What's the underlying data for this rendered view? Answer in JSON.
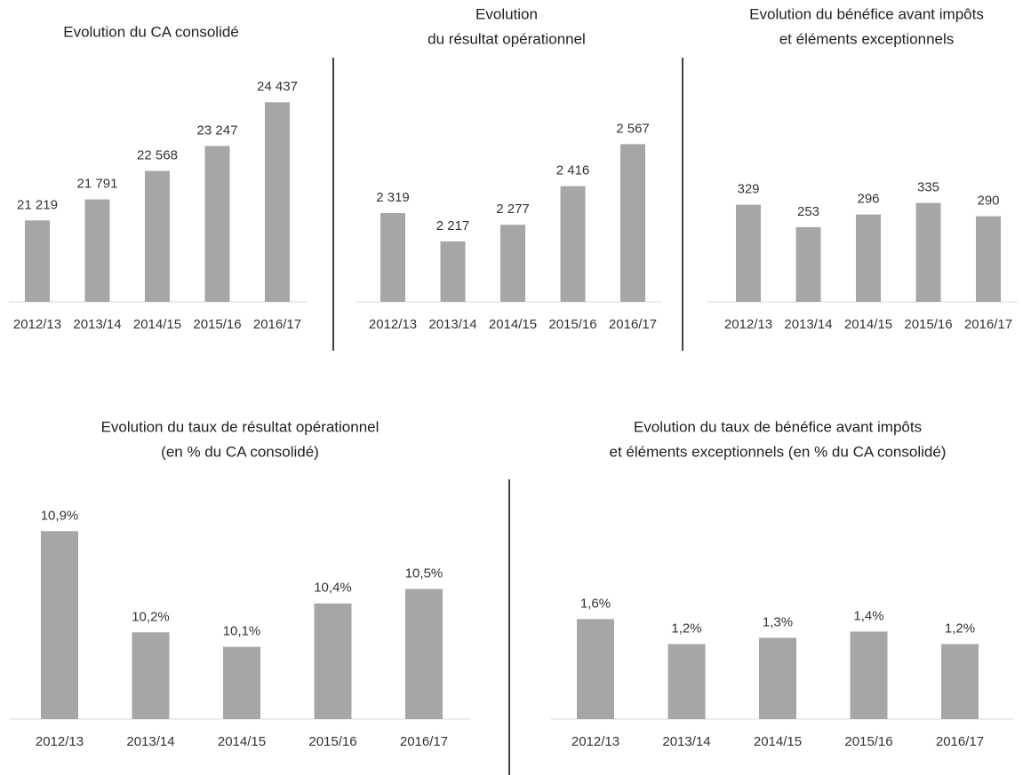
{
  "chart_data": [
    {
      "type": "bar",
      "title": [
        "Evolution du CA consolidé"
      ],
      "categories": [
        "2012/13",
        "2013/14",
        "2014/15",
        "2015/16",
        "2016/17"
      ],
      "values": [
        21219,
        21791,
        22568,
        23247,
        24437
      ],
      "value_labels": [
        "21 219",
        "21 791",
        "22 568",
        "23 247",
        "24 437"
      ],
      "color": "#a6a6a8",
      "ylim": [
        19000,
        25000
      ]
    },
    {
      "type": "bar",
      "title": [
        "Evolution",
        "du résultat opérationnel"
      ],
      "categories": [
        "2012/13",
        "2013/14",
        "2014/15",
        "2015/16",
        "2016/17"
      ],
      "values": [
        2319,
        2217,
        2277,
        2416,
        2567
      ],
      "value_labels": [
        "2 319",
        "2 217",
        "2 277",
        "2 416",
        "2 567"
      ],
      "color": "#a6a6a8",
      "ylim": [
        2000,
        2600
      ]
    },
    {
      "type": "bar",
      "title": [
        "Evolution du bénéfice avant impôts",
        "et éléments exceptionnels"
      ],
      "categories": [
        "2012/13",
        "2013/14",
        "2014/15",
        "2015/16",
        "2016/17"
      ],
      "values": [
        329,
        253,
        296,
        335,
        290
      ],
      "color": "#a6a6a8",
      "ylim": [
        0,
        400
      ]
    },
    {
      "type": "bar",
      "title": [
        "Evolution du taux de résultat opérationnel",
        "(en % du CA consolidé)"
      ],
      "categories": [
        "2012/13",
        "2013/14",
        "2014/15",
        "2015/16",
        "2016/17"
      ],
      "values": [
        10.9,
        10.2,
        10.1,
        10.4,
        10.5
      ],
      "value_labels": [
        "10,9%",
        "10,2%",
        "10,1%",
        "10,4%",
        "10,5%"
      ],
      "color": "#a6a6a8",
      "ylim": [
        9.6,
        11
      ]
    },
    {
      "type": "bar",
      "title": [
        "Evolution du taux de bénéfice avant impôts",
        "et éléments exceptionnels (en % du CA consolidé)"
      ],
      "categories": [
        "2012/13",
        "2013/14",
        "2014/15",
        "2015/16",
        "2016/17"
      ],
      "values": [
        1.6,
        1.2,
        1.3,
        1.4,
        1.2
      ],
      "value_labels": [
        "1,6%",
        "1,2%",
        "1,3%",
        "1,4%",
        "1,2%"
      ],
      "color": "#a6a6a8",
      "ylim": [
        0,
        2.5
      ]
    }
  ]
}
